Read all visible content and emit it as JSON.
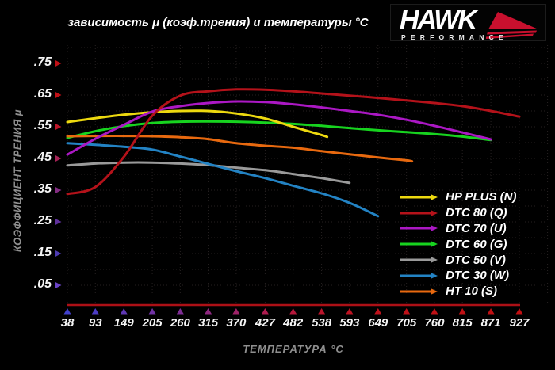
{
  "title": "зависимость μ (коэф.трения) и температуры °C",
  "logo": {
    "brand": "HAWK",
    "sub": "PERFORMANCE"
  },
  "chart_data": {
    "type": "line",
    "title": "зависимость μ (коэф.трения) и температуры °C",
    "xlabel": "ТЕМПЕРАТУРА °C",
    "ylabel": "КОЭФФИЦИЕНТ ТРЕНИЯ μ",
    "xlim": [
      38,
      927
    ],
    "ylim": [
      0,
      0.8
    ],
    "grid": true,
    "legend_position": "bottom-right",
    "x_ticks": [
      38,
      93,
      149,
      205,
      260,
      315,
      370,
      427,
      482,
      538,
      593,
      649,
      705,
      760,
      815,
      871,
      927
    ],
    "y_ticks": [
      ".75",
      ".65",
      ".55",
      ".45",
      ".35",
      ".25",
      ".15",
      ".05"
    ],
    "y_tick_values": [
      0.75,
      0.65,
      0.55,
      0.45,
      0.35,
      0.25,
      0.15,
      0.05
    ],
    "x_tick_arrow_colors": [
      "#4040cc",
      "#4c3cc4",
      "#5f38b4",
      "#7032a4",
      "#7e2d94",
      "#8e2880",
      "#9e2268",
      "#ae1c50",
      "#b6183c",
      "#bb152c",
      "#bd1322",
      "#be121c",
      "#bf1118",
      "#c01116",
      "#c01014",
      "#c01013",
      "#c00f12"
    ],
    "y_tick_arrow_colors": [
      "#c01016",
      "#c01016",
      "#bc1628",
      "#a52356",
      "#832c82",
      "#5f309c",
      "#4d3bb2",
      "#6a44c6"
    ],
    "x_axis_color": "#ad1016",
    "grid_color": "#262121",
    "series": [
      {
        "name": "HP PLUS (N)",
        "color": "#edd90f",
        "points": [
          [
            38,
            0.565
          ],
          [
            93,
            0.577
          ],
          [
            149,
            0.588
          ],
          [
            205,
            0.596
          ],
          [
            260,
            0.6
          ],
          [
            315,
            0.6
          ],
          [
            370,
            0.592
          ],
          [
            427,
            0.576
          ],
          [
            482,
            0.55
          ],
          [
            538,
            0.524
          ],
          [
            549,
            0.518
          ]
        ]
      },
      {
        "name": "DTC 80 (Q)",
        "color": "#b4121a",
        "points": [
          [
            38,
            0.338
          ],
          [
            93,
            0.36
          ],
          [
            149,
            0.455
          ],
          [
            205,
            0.585
          ],
          [
            260,
            0.648
          ],
          [
            315,
            0.662
          ],
          [
            370,
            0.668
          ],
          [
            427,
            0.667
          ],
          [
            482,
            0.662
          ],
          [
            538,
            0.655
          ],
          [
            593,
            0.648
          ],
          [
            649,
            0.641
          ],
          [
            705,
            0.633
          ],
          [
            760,
            0.625
          ],
          [
            815,
            0.615
          ],
          [
            871,
            0.6
          ],
          [
            927,
            0.582
          ]
        ]
      },
      {
        "name": "DTC 70 (U)",
        "color": "#ab18c4",
        "points": [
          [
            38,
            0.462
          ],
          [
            93,
            0.512
          ],
          [
            149,
            0.556
          ],
          [
            205,
            0.598
          ],
          [
            260,
            0.615
          ],
          [
            315,
            0.625
          ],
          [
            370,
            0.63
          ],
          [
            427,
            0.628
          ],
          [
            482,
            0.621
          ],
          [
            538,
            0.611
          ],
          [
            593,
            0.6
          ],
          [
            649,
            0.588
          ],
          [
            705,
            0.572
          ],
          [
            760,
            0.553
          ],
          [
            815,
            0.532
          ],
          [
            871,
            0.51
          ]
        ]
      },
      {
        "name": "DTC 60 (G)",
        "color": "#17d31f",
        "points": [
          [
            38,
            0.515
          ],
          [
            93,
            0.536
          ],
          [
            149,
            0.552
          ],
          [
            205,
            0.562
          ],
          [
            260,
            0.566
          ],
          [
            315,
            0.567
          ],
          [
            370,
            0.566
          ],
          [
            427,
            0.563
          ],
          [
            482,
            0.559
          ],
          [
            538,
            0.553
          ],
          [
            593,
            0.546
          ],
          [
            649,
            0.539
          ],
          [
            705,
            0.533
          ],
          [
            760,
            0.527
          ],
          [
            815,
            0.519
          ],
          [
            871,
            0.508
          ]
        ]
      },
      {
        "name": "DTC 50 (V)",
        "color": "#9a9a9a",
        "points": [
          [
            38,
            0.428
          ],
          [
            93,
            0.434
          ],
          [
            149,
            0.437
          ],
          [
            205,
            0.437
          ],
          [
            260,
            0.434
          ],
          [
            315,
            0.429
          ],
          [
            370,
            0.421
          ],
          [
            427,
            0.413
          ],
          [
            482,
            0.401
          ],
          [
            538,
            0.388
          ],
          [
            593,
            0.373
          ]
        ]
      },
      {
        "name": "DTC 30 (W)",
        "color": "#2383c4",
        "points": [
          [
            38,
            0.498
          ],
          [
            93,
            0.493
          ],
          [
            149,
            0.487
          ],
          [
            205,
            0.478
          ],
          [
            260,
            0.456
          ],
          [
            315,
            0.433
          ],
          [
            370,
            0.41
          ],
          [
            427,
            0.388
          ],
          [
            482,
            0.364
          ],
          [
            538,
            0.34
          ],
          [
            593,
            0.31
          ],
          [
            649,
            0.268
          ]
        ]
      },
      {
        "name": "HT 10 (S)",
        "color": "#e8690f",
        "points": [
          [
            38,
            0.52
          ],
          [
            93,
            0.521
          ],
          [
            149,
            0.521
          ],
          [
            205,
            0.52
          ],
          [
            260,
            0.517
          ],
          [
            315,
            0.511
          ],
          [
            370,
            0.498
          ],
          [
            427,
            0.49
          ],
          [
            482,
            0.484
          ],
          [
            538,
            0.473
          ],
          [
            593,
            0.463
          ],
          [
            649,
            0.453
          ],
          [
            705,
            0.444
          ],
          [
            716,
            0.441
          ]
        ]
      }
    ]
  }
}
